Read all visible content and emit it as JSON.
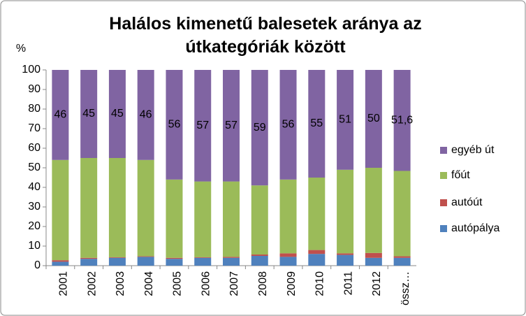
{
  "chart_data": {
    "type": "stacked-bar",
    "title": "Halálos kimenetű balesetek aránya az útkategóriák között",
    "y_label": "%",
    "categories": [
      "2001",
      "2002",
      "2003",
      "2004",
      "2005",
      "2006",
      "2007",
      "2008",
      "2009",
      "2010",
      "2011",
      "2012",
      "össz…"
    ],
    "series": [
      {
        "name": "autópálya",
        "color": "#4f81bd",
        "values": [
          2,
          3.5,
          4,
          4.5,
          3.5,
          4,
          4,
          5,
          4.5,
          6,
          5.5,
          4,
          4
        ]
      },
      {
        "name": "autóút",
        "color": "#c0504d",
        "values": [
          0.8,
          0.5,
          0.3,
          0.3,
          0.5,
          0.3,
          0.5,
          0.7,
          1.8,
          2,
          0.8,
          2.5,
          0.8
        ]
      },
      {
        "name": "főút",
        "color": "#9bbb59",
        "values": [
          51.2,
          51,
          50.7,
          49.2,
          40,
          38.7,
          38.5,
          35.3,
          37.7,
          37,
          42.7,
          43.5,
          43.6
        ]
      },
      {
        "name": "egyéb út",
        "color": "#8064a2",
        "values": [
          46,
          45,
          45,
          46,
          56,
          57,
          57,
          59,
          56,
          55,
          51,
          50,
          51.6
        ],
        "value_labels": [
          "46",
          "45",
          "45",
          "46",
          "56",
          "57",
          "57",
          "59",
          "56",
          "55",
          "51",
          "50",
          "51,6"
        ]
      }
    ],
    "ylim": [
      0,
      100
    ],
    "yticks": [
      0,
      10,
      20,
      30,
      40,
      50,
      60,
      70,
      80,
      90,
      100
    ],
    "grid": false
  }
}
